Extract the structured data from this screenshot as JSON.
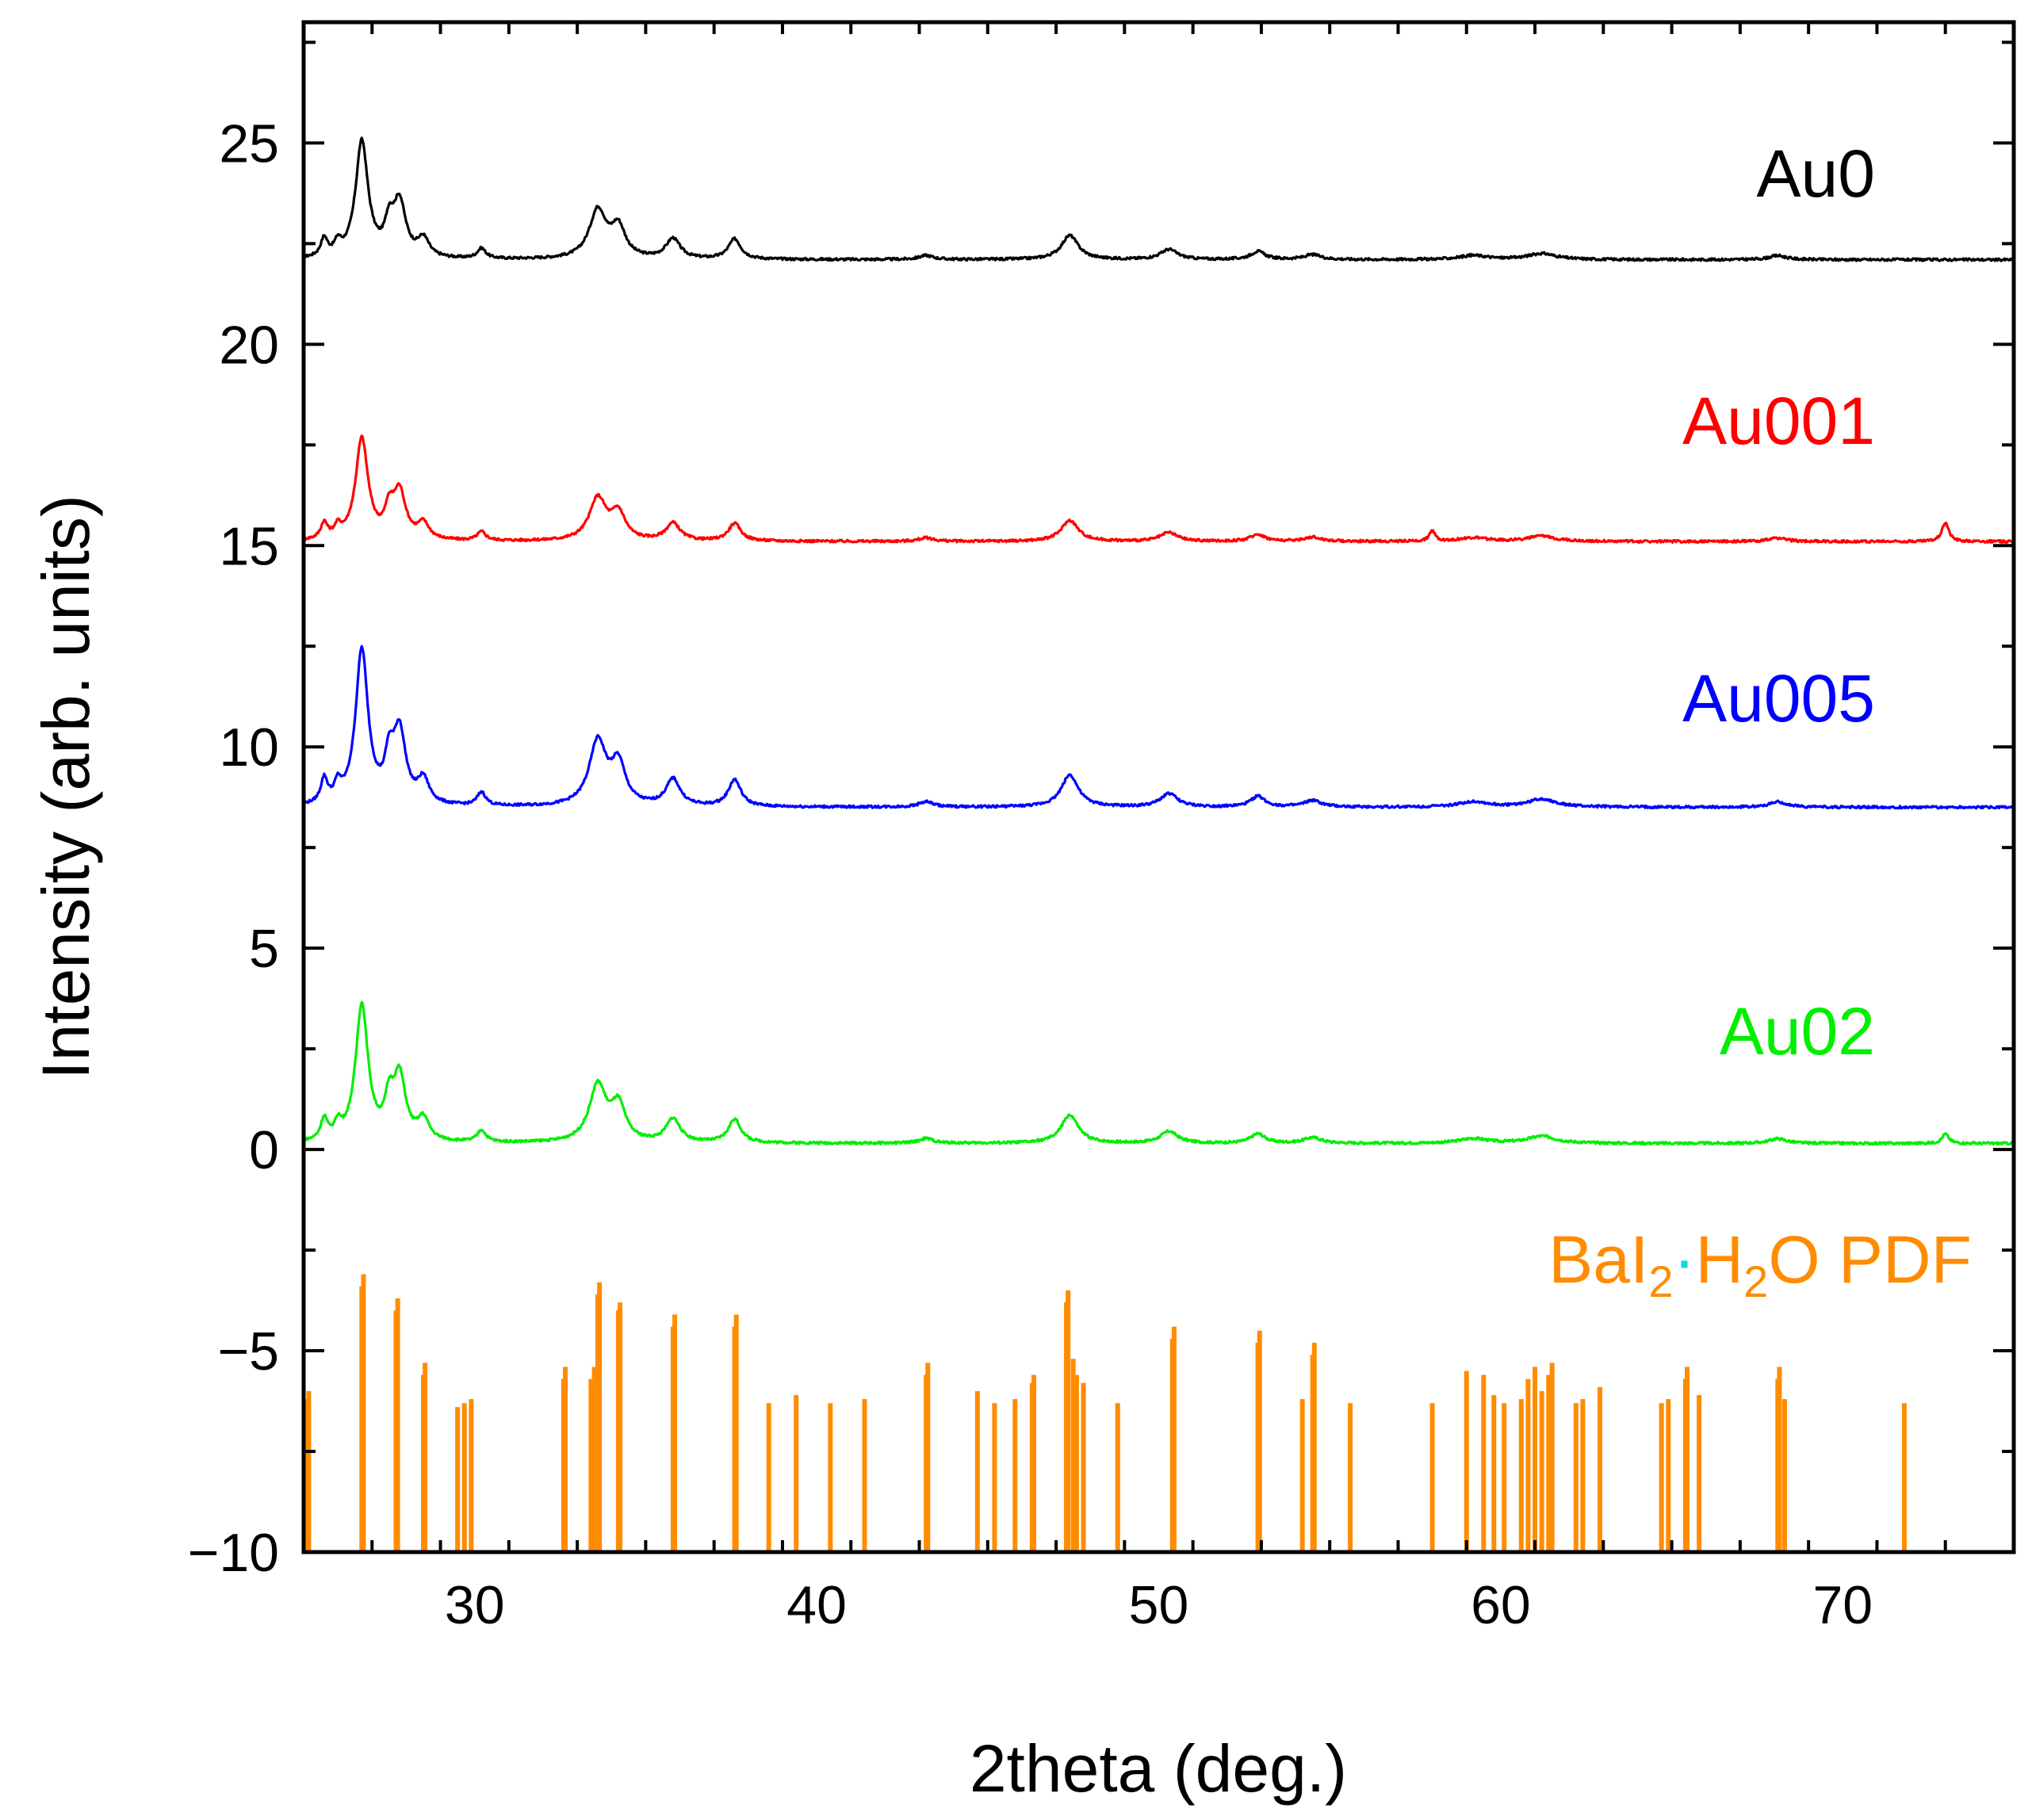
{
  "chart_data": {
    "type": "line",
    "xlabel": "2theta (deg.)",
    "ylabel": "Intensity (arb. units)",
    "xlim": [
      25,
      75
    ],
    "ylim": [
      -10,
      28
    ],
    "xticks": [
      30,
      40,
      50,
      60,
      70
    ],
    "yticks": [
      -10,
      -5,
      0,
      5,
      10,
      15,
      20,
      25
    ],
    "x_tick_labels": [
      "30",
      "40",
      "50",
      "60",
      "70"
    ],
    "y_tick_labels": [
      "−10",
      "−5",
      "0",
      "5",
      "10",
      "15",
      "20",
      "25"
    ],
    "grid": false,
    "legend": "inline series labels at right",
    "peaks": [
      {
        "x": 25.6,
        "w": 0.12,
        "h": 0.45
      },
      {
        "x": 26.0,
        "w": 0.12,
        "h": 0.3
      },
      {
        "x": 26.7,
        "w": 0.22,
        "h": 2.9
      },
      {
        "x": 27.5,
        "w": 0.15,
        "h": 0.7
      },
      {
        "x": 27.8,
        "w": 0.22,
        "h": 1.35
      },
      {
        "x": 28.5,
        "w": 0.2,
        "h": 0.45
      },
      {
        "x": 30.2,
        "w": 0.15,
        "h": 0.25
      },
      {
        "x": 33.6,
        "w": 0.3,
        "h": 1.2
      },
      {
        "x": 34.2,
        "w": 0.25,
        "h": 0.75
      },
      {
        "x": 35.8,
        "w": 0.25,
        "h": 0.5
      },
      {
        "x": 37.6,
        "w": 0.22,
        "h": 0.5
      },
      {
        "x": 43.2,
        "w": 0.25,
        "h": 0.1
      },
      {
        "x": 47.4,
        "w": 0.3,
        "h": 0.6
      },
      {
        "x": 50.3,
        "w": 0.3,
        "h": 0.25
      },
      {
        "x": 52.9,
        "w": 0.25,
        "h": 0.2
      },
      {
        "x": 54.5,
        "w": 0.3,
        "h": 0.12
      },
      {
        "x": 59.2,
        "w": 0.5,
        "h": 0.1
      },
      {
        "x": 61.2,
        "w": 0.5,
        "h": 0.15
      },
      {
        "x": 68.1,
        "w": 0.3,
        "h": 0.1
      }
    ],
    "series": [
      {
        "name": "Au0",
        "color": "#000000",
        "baseline": 22.1,
        "scale": 1.0,
        "extra_peaks": []
      },
      {
        "name": "Au001",
        "color": "#ff0000",
        "baseline": 15.1,
        "scale": 0.87,
        "extra_peaks": [
          {
            "x": 58.0,
            "w": 0.1,
            "h": 0.3
          },
          {
            "x": 73.0,
            "w": 0.12,
            "h": 0.55
          }
        ]
      },
      {
        "name": "Au005",
        "color": "#0000ff",
        "baseline": 8.5,
        "scale": 1.33,
        "extra_peaks": []
      },
      {
        "name": "Au02",
        "color": "#00ee00",
        "baseline": 0.15,
        "scale": 1.17,
        "extra_peaks": [
          {
            "x": 73.0,
            "w": 0.12,
            "h": 0.2
          }
        ]
      }
    ],
    "reference": {
      "name_parts": [
        "BaI",
        "2",
        "·",
        "H",
        "2",
        "O PDF"
      ],
      "color": "#ff8c00",
      "dot_color": "#00dddd",
      "base": -10,
      "sticks": [
        [
          25.05,
          -6.2
        ],
        [
          25.15,
          -6.0
        ],
        [
          26.7,
          -3.4
        ],
        [
          26.75,
          -3.1
        ],
        [
          27.7,
          -4.0
        ],
        [
          27.75,
          -3.7
        ],
        [
          28.5,
          -5.6
        ],
        [
          28.55,
          -5.3
        ],
        [
          29.5,
          -6.4
        ],
        [
          29.7,
          -6.3
        ],
        [
          29.9,
          -6.2
        ],
        [
          32.6,
          -5.7
        ],
        [
          32.65,
          -5.4
        ],
        [
          33.4,
          -5.7
        ],
        [
          33.5,
          -5.4
        ],
        [
          33.6,
          -3.6
        ],
        [
          33.65,
          -3.3
        ],
        [
          34.2,
          -4.0
        ],
        [
          34.25,
          -3.8
        ],
        [
          35.8,
          -4.4
        ],
        [
          35.85,
          -4.1
        ],
        [
          37.6,
          -4.4
        ],
        [
          37.65,
          -4.1
        ],
        [
          38.6,
          -6.3
        ],
        [
          39.4,
          -6.1
        ],
        [
          40.4,
          -6.3
        ],
        [
          41.4,
          -6.2
        ],
        [
          43.2,
          -5.6
        ],
        [
          43.25,
          -5.3
        ],
        [
          44.7,
          -6.0
        ],
        [
          45.2,
          -6.3
        ],
        [
          45.8,
          -6.2
        ],
        [
          46.3,
          -5.8
        ],
        [
          46.35,
          -5.6
        ],
        [
          47.3,
          -3.8
        ],
        [
          47.35,
          -3.5
        ],
        [
          47.5,
          -5.2
        ],
        [
          47.6,
          -5.6
        ],
        [
          47.8,
          -5.8
        ],
        [
          48.8,
          -6.3
        ],
        [
          50.4,
          -4.7
        ],
        [
          50.45,
          -4.4
        ],
        [
          52.9,
          -4.8
        ],
        [
          52.95,
          -4.5
        ],
        [
          54.2,
          -6.2
        ],
        [
          54.5,
          -5.1
        ],
        [
          54.55,
          -4.8
        ],
        [
          55.6,
          -6.3
        ],
        [
          58.0,
          -6.3
        ],
        [
          59.0,
          -5.5
        ],
        [
          59.5,
          -5.6
        ],
        [
          59.8,
          -6.1
        ],
        [
          60.1,
          -6.3
        ],
        [
          60.6,
          -6.2
        ],
        [
          60.8,
          -5.7
        ],
        [
          61.0,
          -5.4
        ],
        [
          61.2,
          -6.0
        ],
        [
          61.4,
          -5.6
        ],
        [
          61.5,
          -5.3
        ],
        [
          62.2,
          -6.3
        ],
        [
          62.4,
          -6.2
        ],
        [
          62.9,
          -5.9
        ],
        [
          64.7,
          -6.3
        ],
        [
          64.9,
          -6.2
        ],
        [
          65.4,
          -5.7
        ],
        [
          65.45,
          -5.4
        ],
        [
          65.8,
          -6.1
        ],
        [
          68.1,
          -5.7
        ],
        [
          68.15,
          -5.4
        ],
        [
          68.3,
          -6.2
        ],
        [
          71.8,
          -6.3
        ]
      ]
    }
  }
}
